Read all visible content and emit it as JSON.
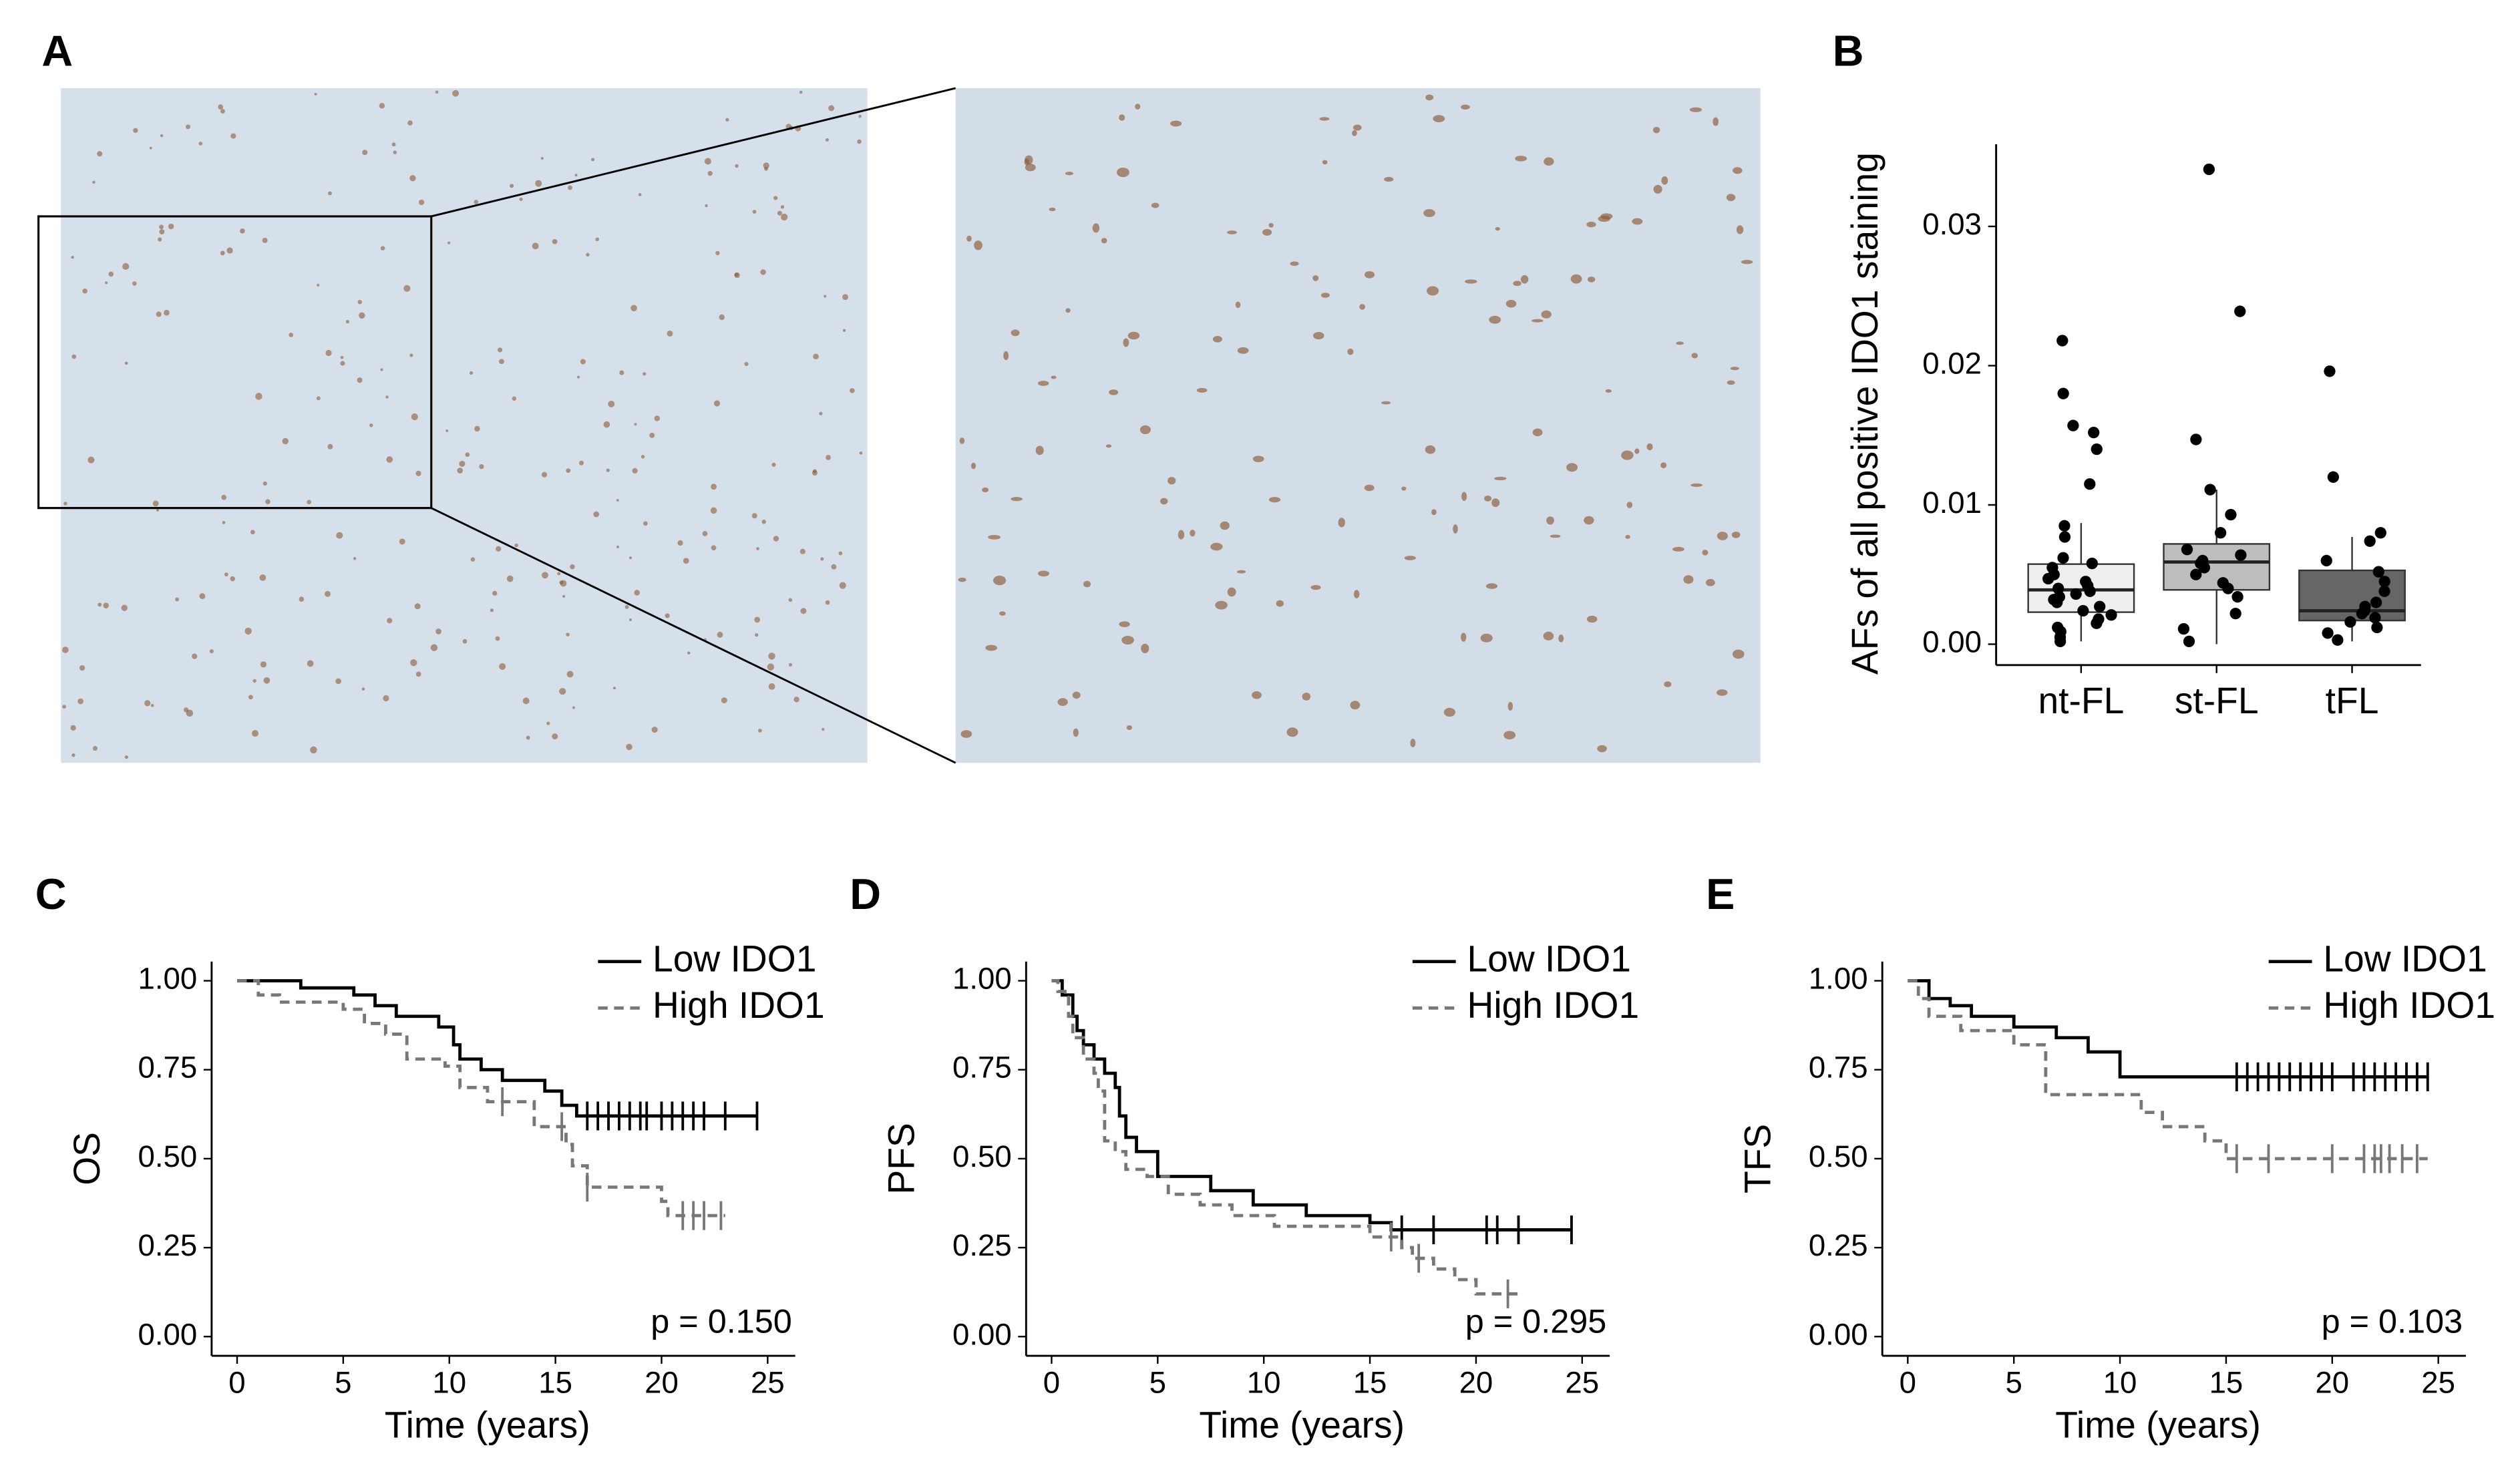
{
  "image_panel": {
    "label": "A"
  },
  "chart_data": [
    {
      "type": "box",
      "panel": "B",
      "y_label": "AFs of all positive IDO1 staining",
      "categories": [
        "nt-FL",
        "st-FL",
        "tFL"
      ],
      "ylim": [
        -0.0015,
        0.0359
      ],
      "yticks": [
        {
          "value": 0,
          "label": "0.00"
        },
        {
          "value": 0.01,
          "label": "0.01"
        },
        {
          "value": 0.02,
          "label": "0.02"
        },
        {
          "value": 0.03,
          "label": "0.03"
        }
      ],
      "boxes": [
        {
          "color": "#eeeeee",
          "whisker_low": 0.0002,
          "q1": 0.0023,
          "median": 0.0039,
          "q3": 0.00575,
          "whisker_high": 0.0087
        },
        {
          "color": "#bdbdbd",
          "whisker_low": 0,
          "q1": 0.0039,
          "median": 0.0059,
          "q3": 0.0072,
          "whisker_high": 0.0111
        },
        {
          "color": "#666666",
          "whisker_low": 0.0002,
          "q1": 0.0017,
          "median": 0.0024,
          "q3": 0.0053,
          "whisker_high": 0.0077
        }
      ],
      "points": [
        [
          0.0218,
          0.018,
          0.0157,
          0.0152,
          0.014,
          0.0115,
          0.0085,
          0.0077,
          0.0062,
          0.0058,
          0.0055,
          0.005,
          0.0047,
          0.0045,
          0.0042,
          0.004,
          0.0038,
          0.0036,
          0.0034,
          0.0032,
          0.003,
          0.0027,
          0.0024,
          0.0021,
          0.0018,
          0.0015,
          0.0012,
          0.0009,
          0.0005,
          0.0002
        ],
        [
          0.0341,
          0.0239,
          0.0147,
          0.0111,
          0.0093,
          0.008,
          0.0068,
          0.0064,
          0.006,
          0.0058,
          0.0055,
          0.005,
          0.0044,
          0.004,
          0.0034,
          0.0022,
          0.0011,
          0.0002
        ],
        [
          0.0196,
          0.012,
          0.008,
          0.0074,
          0.006,
          0.0052,
          0.0045,
          0.0038,
          0.003,
          0.0027,
          0.0024,
          0.0022,
          0.0019,
          0.0016,
          0.0012,
          0.0008,
          0.0003
        ]
      ]
    },
    {
      "type": "km",
      "panel": "C",
      "y_label": "OS",
      "x_label": "Time (years)",
      "annotation": "p = 0.150",
      "xlim": [
        -1.2,
        26.3
      ],
      "ylim": [
        -0.054,
        1.054
      ],
      "xticks": [
        0,
        5,
        10,
        15,
        20,
        25
      ],
      "yticks": [
        {
          "value": 0,
          "label": "0.00"
        },
        {
          "value": 0.25,
          "label": "0.25"
        },
        {
          "value": 0.5,
          "label": "0.50"
        },
        {
          "value": 0.75,
          "label": "0.75"
        },
        {
          "value": 1,
          "label": "1.00"
        }
      ],
      "series": [
        {
          "name": "Low IDO1",
          "color": "#000000",
          "dashed": false,
          "x": [
            0,
            3,
            5.5,
            6.5,
            7.5,
            9.5,
            10.2,
            10.5,
            11.5,
            12.5,
            14.5,
            15.3,
            16,
            24.5
          ],
          "values": [
            1,
            0.98,
            0.96,
            0.93,
            0.9,
            0.87,
            0.82,
            0.78,
            0.75,
            0.72,
            0.69,
            0.65,
            0.62,
            0.62
          ],
          "censor_x": [
            16.5,
            17,
            17.5,
            18,
            18.5,
            19,
            19.3,
            20,
            20.5,
            21,
            21.5,
            22,
            23,
            24.5
          ],
          "censor_y": [
            0.62,
            0.62,
            0.62,
            0.62,
            0.62,
            0.62,
            0.62,
            0.62,
            0.62,
            0.62,
            0.62,
            0.62,
            0.62,
            0.62
          ]
        },
        {
          "name": "High IDO1",
          "color": "#777777",
          "dashed": true,
          "x": [
            0,
            1,
            2,
            5,
            6,
            7,
            8,
            9.8,
            10.5,
            11.8,
            14,
            15.5,
            15.8,
            16.5,
            20,
            20.3,
            23
          ],
          "values": [
            1,
            0.96,
            0.94,
            0.92,
            0.88,
            0.85,
            0.78,
            0.76,
            0.7,
            0.66,
            0.59,
            0.54,
            0.48,
            0.42,
            0.38,
            0.34,
            0.34
          ],
          "censor_x": [
            12.5,
            15.3,
            16.5,
            21,
            21.5,
            22,
            22.8
          ],
          "censor_y": [
            0.66,
            0.59,
            0.42,
            0.34,
            0.34,
            0.34,
            0.34
          ]
        }
      ]
    },
    {
      "type": "km",
      "panel": "D",
      "y_label": "PFS",
      "x_label": "Time (years)",
      "annotation": "p = 0.295",
      "xlim": [
        -1.2,
        26.3
      ],
      "ylim": [
        -0.054,
        1.054
      ],
      "xticks": [
        0,
        5,
        10,
        15,
        20,
        25
      ],
      "yticks": [
        {
          "value": 0,
          "label": "0.00"
        },
        {
          "value": 0.25,
          "label": "0.25"
        },
        {
          "value": 0.5,
          "label": "0.50"
        },
        {
          "value": 0.75,
          "label": "0.75"
        },
        {
          "value": 1,
          "label": "1.00"
        }
      ],
      "series": [
        {
          "name": "Low IDO1",
          "color": "#000000",
          "dashed": false,
          "x": [
            0,
            0.5,
            1,
            1.2,
            1.5,
            2,
            2.5,
            3,
            3.2,
            3.5,
            4,
            5,
            7.5,
            9.5,
            12,
            15,
            16,
            24.5
          ],
          "values": [
            1,
            0.96,
            0.9,
            0.86,
            0.82,
            0.78,
            0.74,
            0.7,
            0.62,
            0.56,
            0.52,
            0.45,
            0.41,
            0.37,
            0.34,
            0.32,
            0.3,
            0.3
          ],
          "censor_x": [
            16.5,
            18,
            20.5,
            21,
            22,
            24.5
          ],
          "censor_y": [
            0.3,
            0.3,
            0.3,
            0.3,
            0.3,
            0.3
          ]
        },
        {
          "name": "High IDO1",
          "color": "#777777",
          "dashed": true,
          "x": [
            0,
            0.3,
            0.8,
            1,
            1.5,
            2,
            2.2,
            2.5,
            3,
            3.5,
            4.5,
            5.5,
            7,
            8.5,
            10.5,
            15,
            16.5,
            17,
            18,
            19,
            20,
            22
          ],
          "values": [
            1,
            0.97,
            0.9,
            0.84,
            0.78,
            0.74,
            0.69,
            0.55,
            0.52,
            0.47,
            0.45,
            0.4,
            0.37,
            0.34,
            0.31,
            0.28,
            0.25,
            0.22,
            0.19,
            0.16,
            0.12,
            0.12
          ],
          "censor_x": [
            16,
            17.3,
            21.5
          ],
          "censor_y": [
            0.28,
            0.22,
            0.12
          ]
        }
      ]
    },
    {
      "type": "km",
      "panel": "E",
      "y_label": "TFS",
      "x_label": "Time (years)",
      "annotation": "p = 0.103",
      "xlim": [
        -1.2,
        26.3
      ],
      "ylim": [
        -0.054,
        1.054
      ],
      "xticks": [
        0,
        5,
        10,
        15,
        20,
        25
      ],
      "yticks": [
        {
          "value": 0,
          "label": "0.00"
        },
        {
          "value": 0.25,
          "label": "0.25"
        },
        {
          "value": 0.5,
          "label": "0.50"
        },
        {
          "value": 0.75,
          "label": "0.75"
        },
        {
          "value": 1,
          "label": "1.00"
        }
      ],
      "series": [
        {
          "name": "Low IDO1",
          "color": "#000000",
          "dashed": false,
          "x": [
            0,
            1,
            2,
            3,
            5,
            7,
            8.5,
            10,
            24.5
          ],
          "values": [
            1,
            0.95,
            0.93,
            0.9,
            0.87,
            0.84,
            0.8,
            0.73,
            0.73
          ],
          "censor_x": [
            15.5,
            16,
            16.5,
            17,
            17.5,
            18,
            18.5,
            19,
            19.5,
            20,
            21,
            21.5,
            22,
            22.5,
            23,
            23.5,
            24,
            24.5
          ],
          "censor_y": [
            0.73,
            0.73,
            0.73,
            0.73,
            0.73,
            0.73,
            0.73,
            0.73,
            0.73,
            0.73,
            0.73,
            0.73,
            0.73,
            0.73,
            0.73,
            0.73,
            0.73,
            0.73
          ]
        },
        {
          "name": "High IDO1",
          "color": "#777777",
          "dashed": true,
          "x": [
            0,
            0.5,
            1,
            2.5,
            5,
            6.5,
            10,
            11,
            12,
            14,
            15,
            24.5
          ],
          "values": [
            1,
            0.95,
            0.9,
            0.86,
            0.82,
            0.68,
            0.68,
            0.63,
            0.59,
            0.55,
            0.5,
            0.5
          ],
          "censor_x": [
            15.5,
            17,
            20,
            21.5,
            22,
            22.3,
            22.7,
            23.3,
            24
          ],
          "censor_y": [
            0.5,
            0.5,
            0.5,
            0.5,
            0.5,
            0.5,
            0.5,
            0.5,
            0.5
          ]
        }
      ]
    }
  ]
}
